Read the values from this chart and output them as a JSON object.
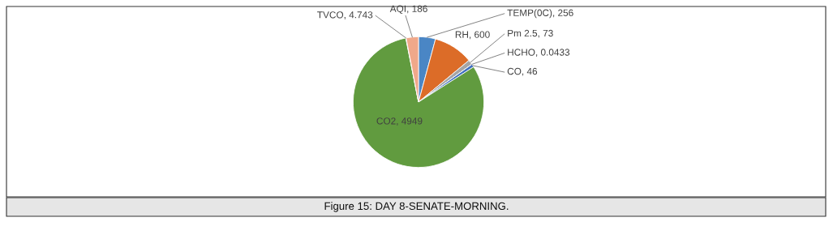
{
  "chart_data": {
    "type": "pie",
    "categories": [
      "TEMP(0C)",
      "RH",
      "Pm 2.5",
      "HCHO",
      "CO",
      "CO2",
      "TVCO",
      "AQI"
    ],
    "values": [
      256,
      600,
      73,
      0.0433,
      46,
      4949,
      4.743,
      186
    ],
    "colors": [
      "#4a86c5",
      "#dc6c28",
      "#a5a5a5",
      "#ffc000",
      "#3f6fc0",
      "#619b3f",
      "#e6e6e6",
      "#f0a88a"
    ],
    "value_labels": [
      ", 256",
      ", 600",
      ", 73",
      ", 0.0433",
      ", 46",
      ", 4949",
      ", 4.743",
      ", 186"
    ],
    "annotations": [
      "Figure 15: DAY 8-SENATE-MORNING."
    ]
  }
}
